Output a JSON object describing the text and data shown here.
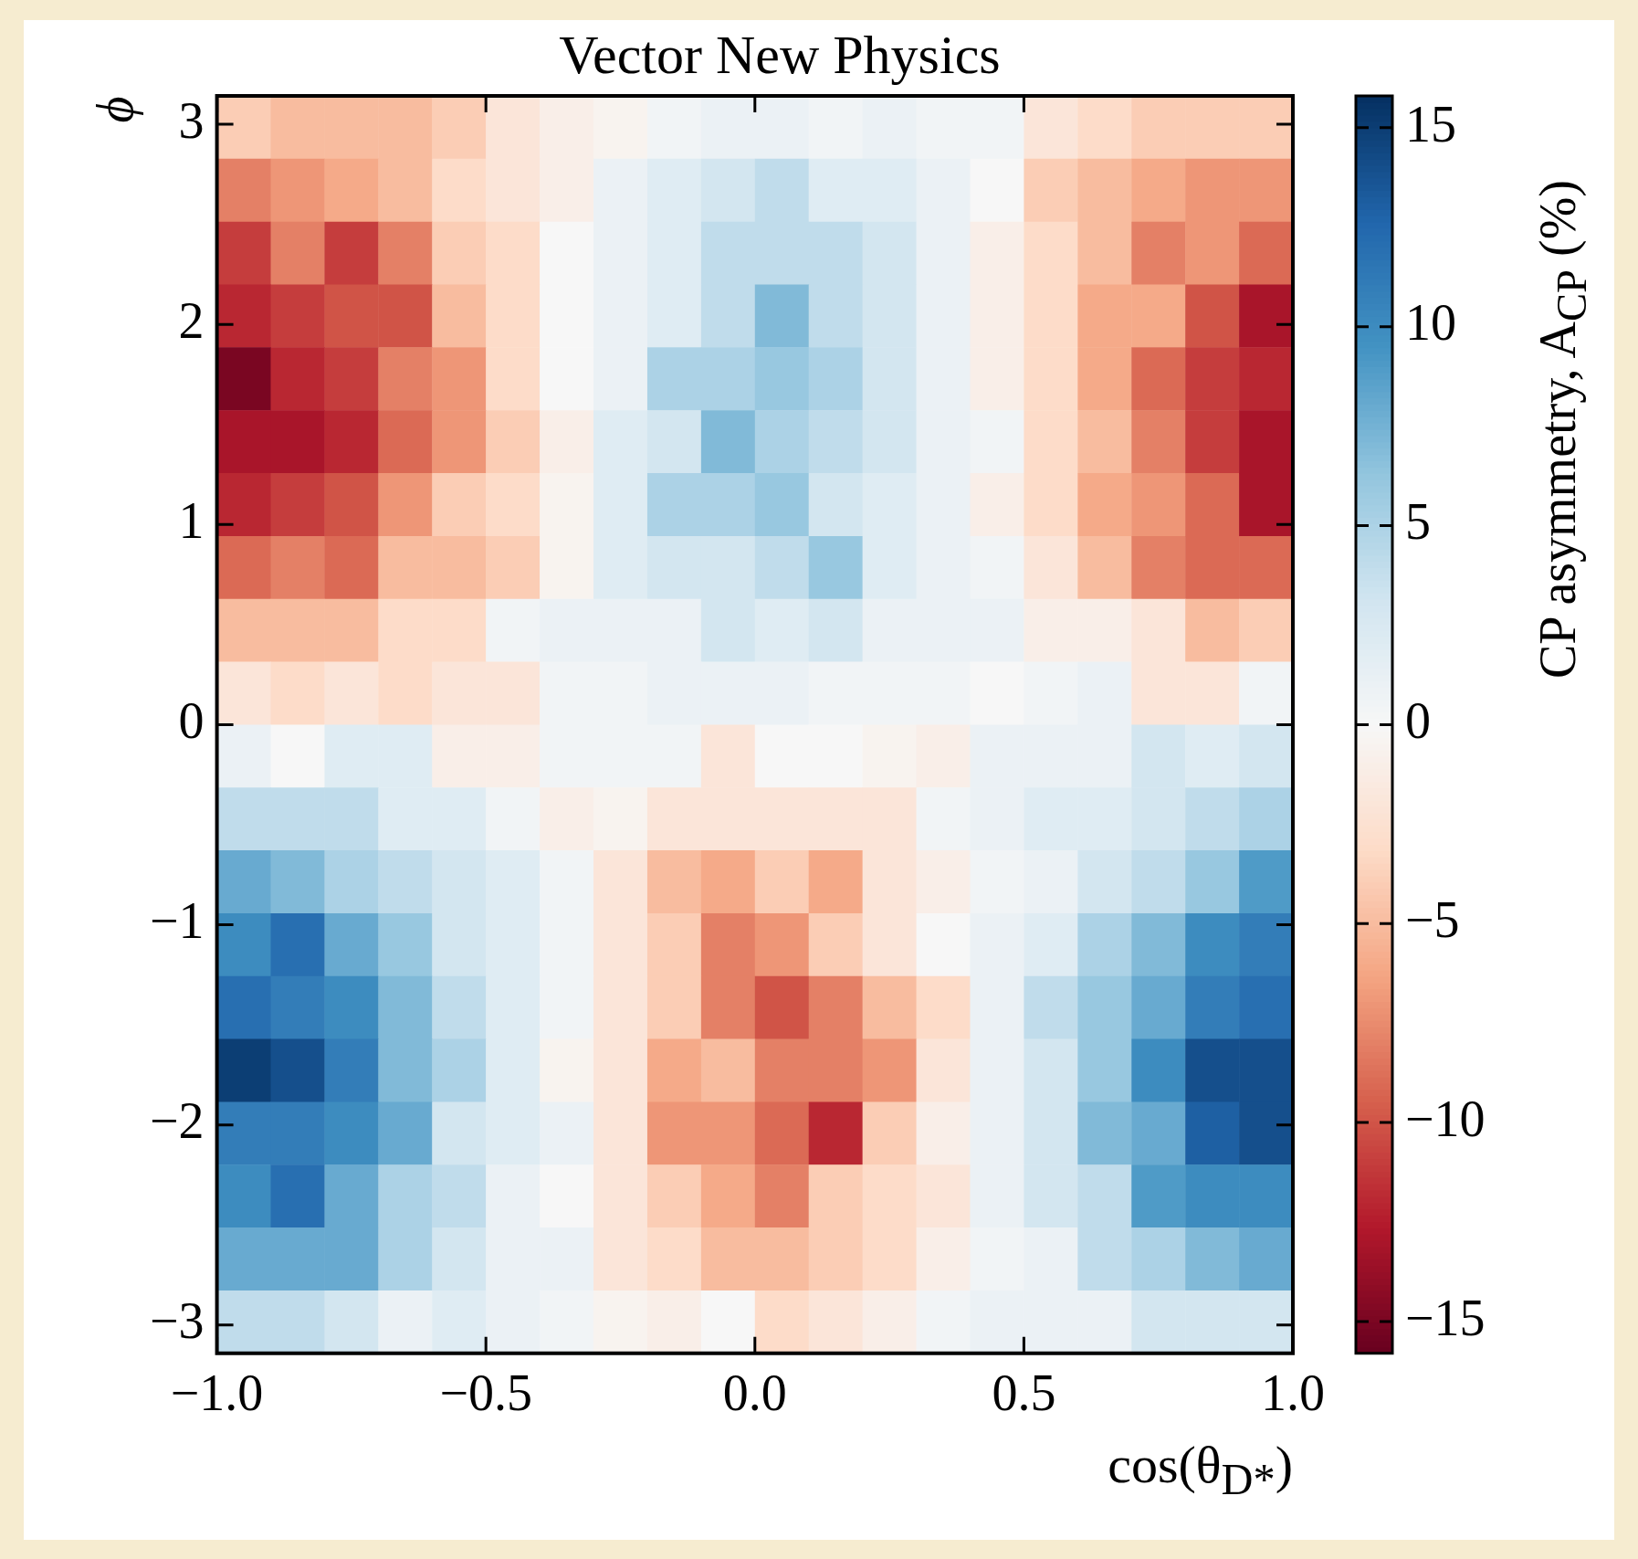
{
  "chart_data": {
    "type": "heatmap",
    "title": "Vector New Physics",
    "xlabel": "cos(θ$_{D*}$)",
    "ylabel": "ϕ",
    "clabel": "CP asymmetry, A$_{CP}$ (%)",
    "xlim": [
      -1,
      1
    ],
    "xticks": [
      {
        "value": -1,
        "label": "−1.0"
      },
      {
        "value": -0.5,
        "label": "−0.5"
      },
      {
        "value": 0,
        "label": "0.0"
      },
      {
        "value": 0.5,
        "label": "0.5"
      },
      {
        "value": 1,
        "label": "1.0"
      }
    ],
    "ylim": [
      -3.1416,
      3.1416
    ],
    "yticks": [
      {
        "value": -3,
        "label": "−3"
      },
      {
        "value": -2,
        "label": "−2"
      },
      {
        "value": -1,
        "label": "−1"
      },
      0,
      1,
      2,
      3
    ],
    "clim": [
      -15.8,
      15.8
    ],
    "cticks": [
      {
        "value": -15,
        "label": "−15"
      },
      {
        "value": -10,
        "label": "−10"
      },
      {
        "value": -5,
        "label": "−5"
      },
      0,
      5,
      10,
      15
    ],
    "cells": [
      [
        -4,
        -5,
        -5,
        -5,
        -4,
        -2,
        -1,
        -0.5,
        0.5,
        1,
        1,
        0.5,
        1,
        0.5,
        0.5,
        -2,
        -3,
        -4,
        -4,
        -4
      ],
      [
        -8,
        -7,
        -6,
        -5,
        -3,
        -2,
        -1,
        1,
        2,
        3,
        4,
        2,
        2,
        1,
        0,
        -4,
        -5,
        -6,
        -7,
        -7
      ],
      [
        -11,
        -8,
        -11,
        -8,
        -4,
        -3,
        0,
        1,
        2,
        4,
        4,
        4,
        3,
        1,
        -1,
        -3,
        -5,
        -8,
        -7,
        -9
      ],
      [
        -12,
        -11,
        -10,
        -10,
        -5,
        -3,
        0,
        1,
        2,
        4,
        7,
        4,
        3,
        1,
        -1,
        -3,
        -6,
        -6,
        -10,
        -13
      ],
      [
        -15,
        -12,
        -11,
        -8,
        -7,
        -3,
        0,
        1,
        5,
        5,
        6,
        5,
        3,
        1,
        -1,
        -3,
        -6,
        -9,
        -11,
        -12
      ],
      [
        -13,
        -13,
        -12,
        -9,
        -7,
        -4,
        -1,
        2,
        3,
        7,
        5,
        4,
        3,
        1,
        0.5,
        -3,
        -5,
        -8,
        -11,
        -13
      ],
      [
        -12,
        -11,
        -10,
        -7,
        -4,
        -3,
        -0.5,
        2,
        5,
        5,
        6,
        3,
        2,
        1,
        -1,
        -3,
        -6,
        -7,
        -9,
        -13
      ],
      [
        -9,
        -8,
        -9,
        -5,
        -5,
        -4,
        -0.5,
        2,
        3,
        3,
        4,
        6,
        2,
        1,
        0.5,
        -2,
        -5,
        -8,
        -9,
        -9
      ],
      [
        -5,
        -5,
        -5,
        -3,
        -3,
        0.5,
        1,
        1,
        1,
        3,
        2,
        3,
        1,
        1,
        1,
        -1,
        -1,
        -2,
        -5,
        -4
      ],
      [
        -2,
        -3,
        -2,
        -3,
        -2,
        -2,
        0.5,
        0.5,
        1,
        1,
        1,
        0.5,
        0.5,
        0.5,
        0,
        0.5,
        1,
        -2,
        -2,
        0.5
      ],
      [
        1,
        0,
        2,
        2,
        -1,
        -1,
        0.5,
        0.5,
        0.5,
        -2,
        0,
        0,
        -0.5,
        -1,
        1,
        1,
        1,
        3,
        2,
        3
      ],
      [
        4,
        4,
        4,
        2,
        2,
        0.5,
        -1,
        -0.5,
        -2,
        -2,
        -2,
        -2,
        -2,
        0.5,
        1,
        2,
        2,
        3,
        4,
        5
      ],
      [
        8,
        7,
        5,
        4,
        3,
        2,
        0.5,
        -2,
        -5,
        -6,
        -4,
        -6,
        -2,
        -1,
        0.5,
        1,
        3,
        4,
        6,
        9
      ],
      [
        10,
        12,
        8,
        6,
        3,
        2,
        0.5,
        -2,
        -4,
        -8,
        -7,
        -4,
        -2,
        0,
        1,
        2,
        5,
        7,
        10,
        11
      ],
      [
        12,
        11,
        10,
        7,
        4,
        2,
        0.5,
        -2,
        -4,
        -8,
        -10,
        -8,
        -5,
        -3,
        1,
        4,
        6,
        8,
        11,
        12
      ],
      [
        15,
        14,
        11,
        7,
        5,
        2,
        -0.5,
        -2,
        -6,
        -5,
        -8,
        -8,
        -7,
        -2,
        1,
        3,
        6,
        10,
        14,
        14
      ],
      [
        11,
        11,
        10,
        8,
        3,
        2,
        1,
        -2,
        -7,
        -7,
        -9,
        -12,
        -4,
        -1,
        1,
        3,
        7,
        8,
        13,
        14
      ],
      [
        10,
        12,
        8,
        5,
        4,
        1,
        0,
        -2,
        -4,
        -6,
        -8,
        -4,
        -3,
        -2,
        1,
        3,
        4,
        9,
        10,
        10
      ],
      [
        8,
        8,
        8,
        5,
        3,
        1,
        1,
        -2,
        -3,
        -5,
        -5,
        -4,
        -3,
        -1,
        0.5,
        1,
        4,
        5,
        7,
        8
      ],
      [
        4,
        4,
        3,
        1,
        2,
        1,
        0.5,
        -0.5,
        -1,
        0,
        -3,
        -2,
        -1,
        0.5,
        1,
        1,
        1,
        3,
        3,
        3
      ]
    ]
  }
}
